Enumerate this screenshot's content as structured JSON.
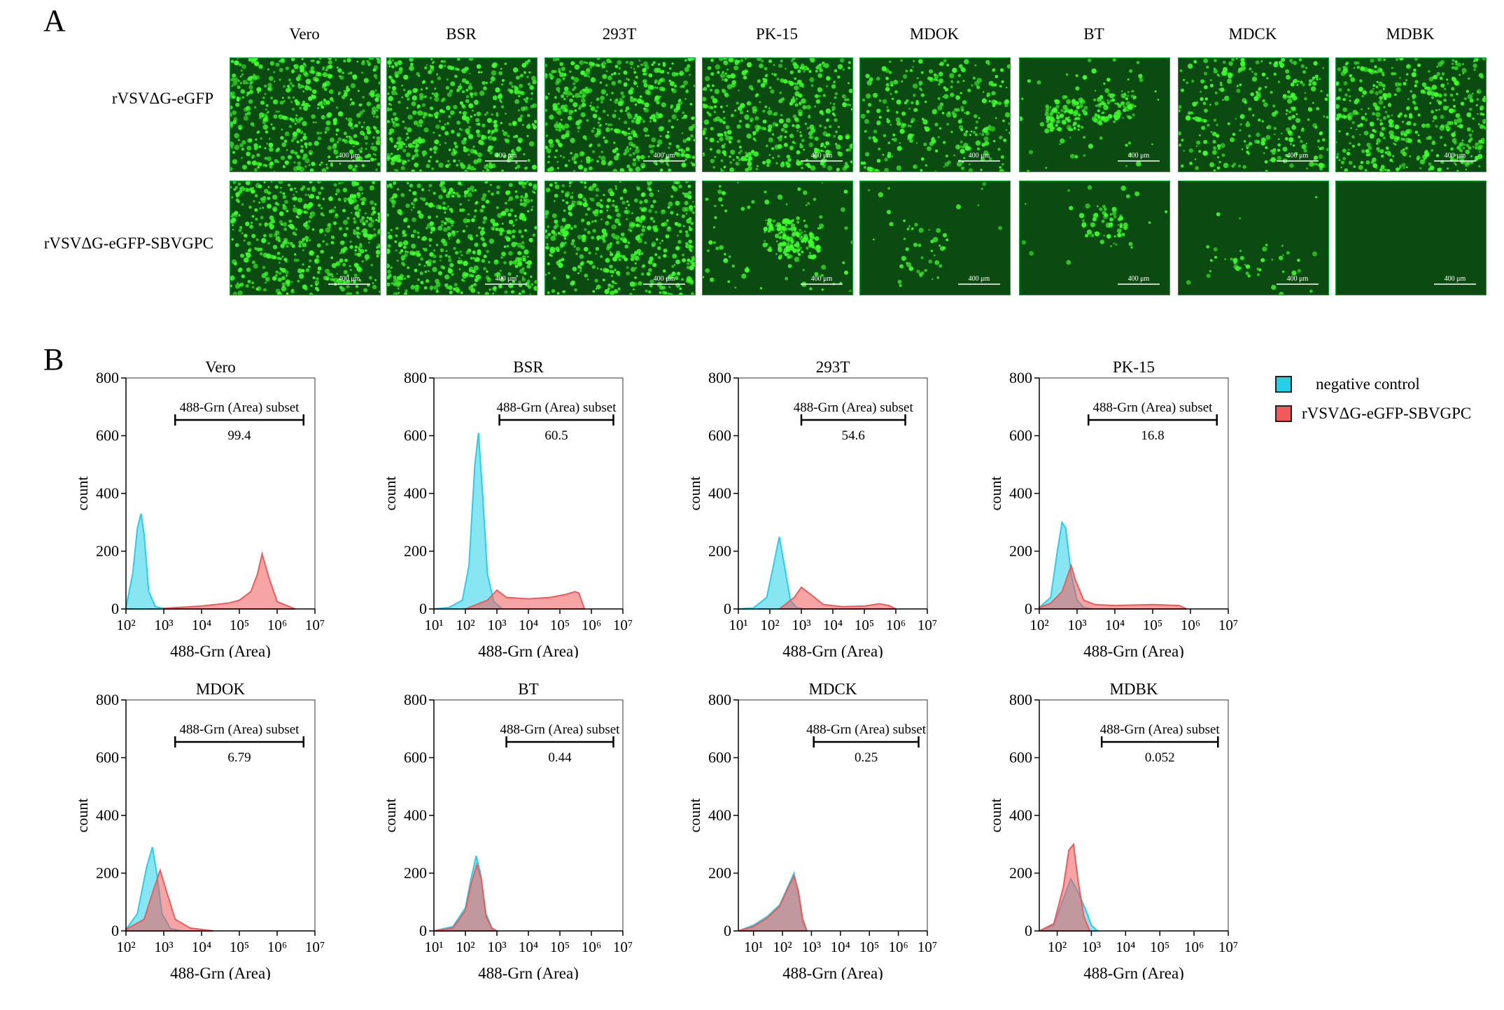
{
  "panel_a_label": "A",
  "panel_b_label": "B",
  "panel_a": {
    "columns": [
      "Vero",
      "BSR",
      "293T",
      "PK-15",
      "MDOK",
      "BT",
      "MDCK",
      "MDBK"
    ],
    "rows": [
      "rVSVΔG-eGFP",
      "rVSVΔG-eGFP-SBVGPC"
    ],
    "scale_bar": "400 μm",
    "fluorescence_density": [
      [
        0.95,
        0.85,
        0.9,
        0.8,
        0.55,
        0.4,
        0.55,
        0.85
      ],
      [
        0.9,
        0.9,
        0.85,
        0.45,
        0.1,
        0.12,
        0.08,
        0.0
      ]
    ],
    "colors": {
      "cells": "#3dff2a",
      "background": "#0b4a10"
    }
  },
  "colors": {
    "negative": "#26cfe8",
    "infected": "#f05a5a",
    "overlap": "#7d88a8"
  },
  "legend": {
    "negative": "negative control",
    "infected": "rVSVΔG-eGFP-SBVGPC"
  },
  "chart_data": [
    {
      "type": "area",
      "title": "Vero",
      "xlabel": "488-Grn (Area)",
      "ylabel": "count",
      "x_scale": "log",
      "xlim": [
        100,
        10000000
      ],
      "ylim": [
        0,
        800
      ],
      "yticks": [
        "0",
        "200",
        "400",
        "600",
        "800"
      ],
      "xticks": [
        "10²",
        "10³",
        "10⁴",
        "10⁵",
        "10⁶",
        "10⁷"
      ],
      "gate": {
        "label": "488-Grn (Area) subset",
        "value": "99.4",
        "range": [
          2000,
          5000000
        ]
      },
      "series": [
        {
          "key": "negative",
          "x": [
            100,
            150,
            200,
            250,
            300,
            400,
            600,
            1000,
            2000
          ],
          "y": [
            5,
            120,
            280,
            330,
            260,
            60,
            8,
            2,
            0
          ]
        },
        {
          "key": "infected",
          "x": [
            1000,
            10000,
            50000,
            100000,
            200000,
            300000,
            400000,
            600000,
            1000000,
            3000000
          ],
          "y": [
            2,
            10,
            20,
            30,
            60,
            120,
            190,
            110,
            25,
            0
          ]
        }
      ]
    },
    {
      "type": "area",
      "title": "BSR",
      "xlabel": "488-Grn (Area)",
      "ylabel": "count",
      "x_scale": "log",
      "xlim": [
        10,
        10000000
      ],
      "ylim": [
        0,
        800
      ],
      "yticks": [
        "0",
        "200",
        "400",
        "600",
        "800"
      ],
      "xticks": [
        "10¹",
        "10²",
        "10³",
        "10⁴",
        "10⁵",
        "10⁶",
        "10⁷"
      ],
      "gate": {
        "label": "488-Grn (Area) subset",
        "value": "60.5",
        "range": [
          1200,
          5000000
        ]
      },
      "series": [
        {
          "key": "negative",
          "x": [
            10,
            30,
            80,
            130,
            200,
            260,
            350,
            500,
            800,
            1500
          ],
          "y": [
            0,
            5,
            30,
            150,
            500,
            610,
            400,
            120,
            25,
            0
          ]
        },
        {
          "key": "infected",
          "x": [
            100,
            500,
            1000,
            2000,
            10000,
            50000,
            150000,
            300000,
            400000,
            600000
          ],
          "y": [
            0,
            30,
            65,
            40,
            35,
            40,
            50,
            60,
            55,
            0
          ]
        }
      ]
    },
    {
      "type": "area",
      "title": "293T",
      "xlabel": "488-Grn (Area)",
      "ylabel": "count",
      "x_scale": "log",
      "xlim": [
        10,
        10000000
      ],
      "ylim": [
        0,
        800
      ],
      "yticks": [
        "0",
        "200",
        "400",
        "600",
        "800"
      ],
      "xticks": [
        "10¹",
        "10²",
        "10³",
        "10⁴",
        "10⁵",
        "10⁶",
        "10⁷"
      ],
      "gate": {
        "label": "488-Grn (Area) subset",
        "value": "54.6",
        "range": [
          1000,
          2000000
        ]
      },
      "series": [
        {
          "key": "negative",
          "x": [
            10,
            30,
            80,
            130,
            200,
            300,
            450,
            700,
            1200
          ],
          "y": [
            0,
            3,
            40,
            150,
            250,
            140,
            30,
            5,
            0
          ]
        },
        {
          "key": "infected",
          "x": [
            200,
            600,
            1000,
            2000,
            5000,
            20000,
            100000,
            300000,
            600000,
            1000000
          ],
          "y": [
            0,
            40,
            75,
            50,
            15,
            8,
            10,
            18,
            12,
            0
          ]
        }
      ]
    },
    {
      "type": "area",
      "title": "PK-15",
      "xlabel": "488-Grn (Area)",
      "ylabel": "count",
      "x_scale": "log",
      "xlim": [
        100,
        10000000
      ],
      "ylim": [
        0,
        800
      ],
      "yticks": [
        "0",
        "200",
        "400",
        "600",
        "800"
      ],
      "xticks": [
        "10²",
        "10³",
        "10⁴",
        "10⁵",
        "10⁶",
        "10⁷"
      ],
      "gate": {
        "label": "488-Grn (Area) subset",
        "value": "16.8",
        "range": [
          2000,
          5000000
        ]
      },
      "series": [
        {
          "key": "negative",
          "x": [
            100,
            200,
            300,
            400,
            500,
            700,
            1000,
            1500,
            2500
          ],
          "y": [
            5,
            40,
            200,
            300,
            280,
            120,
            30,
            5,
            0
          ]
        },
        {
          "key": "infected",
          "x": [
            100,
            200,
            400,
            700,
            900,
            1500,
            3000,
            10000,
            100000,
            500000,
            800000
          ],
          "y": [
            5,
            20,
            60,
            150,
            100,
            30,
            15,
            12,
            15,
            12,
            0
          ]
        }
      ]
    },
    {
      "type": "area",
      "title": "MDOK",
      "xlabel": "488-Grn (Area)",
      "ylabel": "count",
      "x_scale": "log",
      "xlim": [
        100,
        10000000
      ],
      "ylim": [
        0,
        800
      ],
      "yticks": [
        "0",
        "200",
        "400",
        "600",
        "800"
      ],
      "xticks": [
        "10²",
        "10³",
        "10⁴",
        "10⁵",
        "10⁶",
        "10⁷"
      ],
      "gate": {
        "label": "488-Grn (Area) subset",
        "value": "6.79",
        "range": [
          2000,
          5000000
        ]
      },
      "series": [
        {
          "key": "negative",
          "x": [
            100,
            200,
            350,
            500,
            650,
            900,
            1500,
            3000
          ],
          "y": [
            5,
            60,
            220,
            290,
            200,
            60,
            8,
            0
          ]
        },
        {
          "key": "infected",
          "x": [
            100,
            300,
            500,
            800,
            1100,
            2000,
            5000,
            20000
          ],
          "y": [
            5,
            40,
            130,
            210,
            150,
            40,
            10,
            0
          ]
        }
      ]
    },
    {
      "type": "area",
      "title": "BT",
      "xlabel": "488-Grn (Area)",
      "ylabel": "count",
      "x_scale": "log",
      "xlim": [
        10,
        10000000
      ],
      "ylim": [
        0,
        800
      ],
      "yticks": [
        "0",
        "200",
        "400",
        "600",
        "800"
      ],
      "xticks": [
        "10¹",
        "10²",
        "10³",
        "10⁴",
        "10⁵",
        "10⁶",
        "10⁷"
      ],
      "gate": {
        "label": "488-Grn (Area) subset",
        "value": "0.44",
        "range": [
          2000,
          5000000
        ]
      },
      "series": [
        {
          "key": "negative",
          "x": [
            10,
            40,
            100,
            150,
            220,
            300,
            450,
            700,
            1000
          ],
          "y": [
            0,
            15,
            80,
            180,
            260,
            200,
            60,
            10,
            0
          ]
        },
        {
          "key": "infected",
          "x": [
            10,
            40,
            100,
            150,
            230,
            320,
            450,
            700,
            1000
          ],
          "y": [
            0,
            10,
            70,
            160,
            230,
            180,
            50,
            8,
            0
          ]
        }
      ]
    },
    {
      "type": "area",
      "title": "MDCK",
      "xlabel": "488-Grn (Area)",
      "ylabel": "count",
      "x_scale": "log",
      "xlim": [
        3,
        10000000
      ],
      "ylim": [
        0,
        800
      ],
      "yticks": [
        "0",
        "200",
        "400",
        "600",
        "800"
      ],
      "xticks": [
        "10¹",
        "10²",
        "10³",
        "10⁴",
        "10⁵",
        "10⁶",
        "10⁷"
      ],
      "gate": {
        "label": "488-Grn (Area) subset",
        "value": "0.25",
        "range": [
          1200,
          5000000
        ]
      },
      "series": [
        {
          "key": "negative",
          "x": [
            3,
            10,
            30,
            80,
            150,
            250,
            350,
            500,
            700
          ],
          "y": [
            0,
            20,
            50,
            90,
            150,
            200,
            130,
            30,
            0
          ]
        },
        {
          "key": "infected",
          "x": [
            3,
            10,
            30,
            80,
            150,
            250,
            350,
            500,
            700
          ],
          "y": [
            0,
            15,
            45,
            85,
            145,
            190,
            140,
            40,
            0
          ]
        }
      ]
    },
    {
      "type": "area",
      "title": "MDBK",
      "xlabel": "488-Grn (Area)",
      "ylabel": "count",
      "x_scale": "log",
      "xlim": [
        30,
        10000000
      ],
      "ylim": [
        0,
        800
      ],
      "yticks": [
        "0",
        "200",
        "400",
        "600",
        "800"
      ],
      "xticks": [
        "10²",
        "10³",
        "10⁴",
        "10⁵",
        "10⁶",
        "10⁷"
      ],
      "gate": {
        "label": "488-Grn (Area) subset",
        "value": "0.052",
        "range": [
          2000,
          5000000
        ]
      },
      "series": [
        {
          "key": "negative",
          "x": [
            30,
            80,
            150,
            250,
            350,
            500,
            700,
            1000,
            1500
          ],
          "y": [
            0,
            20,
            110,
            180,
            150,
            110,
            70,
            20,
            0
          ]
        },
        {
          "key": "infected",
          "x": [
            30,
            80,
            150,
            220,
            300,
            400,
            600,
            900
          ],
          "y": [
            0,
            25,
            150,
            280,
            300,
            180,
            50,
            0
          ]
        }
      ]
    }
  ]
}
